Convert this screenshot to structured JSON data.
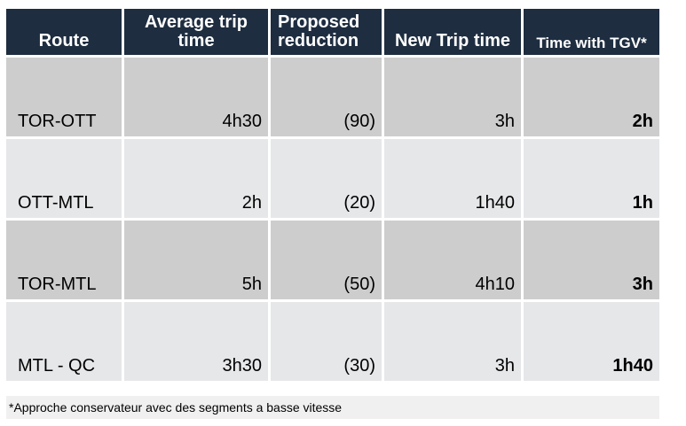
{
  "table": {
    "columns": [
      {
        "label": "Route"
      },
      {
        "label": "Average trip time"
      },
      {
        "label": "Proposed reduction"
      },
      {
        "label": "New Trip time"
      },
      {
        "label": "Time with TGV*"
      }
    ],
    "rows": [
      {
        "route": "TOR-OTT",
        "avg_trip_time": "4h30",
        "proposed_reduction": "(90)",
        "new_trip_time": "3h",
        "time_with_tgv": "2h"
      },
      {
        "route": "OTT-MTL",
        "avg_trip_time": "2h",
        "proposed_reduction": "(20)",
        "new_trip_time": "1h40",
        "time_with_tgv": "1h"
      },
      {
        "route": "TOR-MTL",
        "avg_trip_time": "5h",
        "proposed_reduction": "(50)",
        "new_trip_time": "4h10",
        "time_with_tgv": "3h"
      },
      {
        "route": "MTL - QC",
        "avg_trip_time": "3h30",
        "proposed_reduction": "(30)",
        "new_trip_time": "3h",
        "time_with_tgv": "1h40"
      }
    ]
  },
  "footnote": "*Approche conservateur avec des segments a basse vitesse",
  "colors": {
    "header_bg": "#1e2d40",
    "header_text": "#ffffff",
    "row_dark": "#cdcdcd",
    "row_light": "#e6e7e9",
    "footnote_bg": "#f0f0f0",
    "body_text": "#000000"
  }
}
